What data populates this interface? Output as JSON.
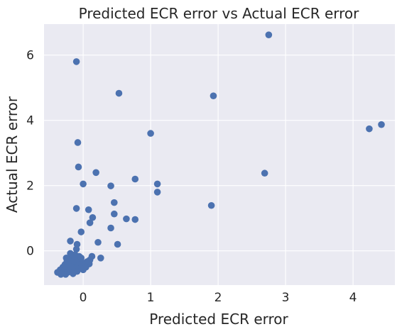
{
  "chart_data": {
    "type": "scatter",
    "title": "Predicted ECR error vs Actual ECR error",
    "xlabel": "Predicted ECR error",
    "ylabel": "Actual ECR error",
    "xlim": [
      -0.58,
      4.62
    ],
    "ylim": [
      -1.05,
      6.95
    ],
    "xticks": [
      0,
      1,
      2,
      3,
      4
    ],
    "yticks": [
      0,
      2,
      4,
      6
    ],
    "xtick_labels": [
      "0",
      "1",
      "2",
      "3",
      "4"
    ],
    "ytick_labels": [
      "0",
      "2",
      "4",
      "6"
    ],
    "grid": true,
    "background_color": "#eaeaf2",
    "grid_color": "#ffffff",
    "point_color": "#4c72b0",
    "points": [
      {
        "x": -0.1,
        "y": 5.8
      },
      {
        "x": 2.75,
        "y": 6.62
      },
      {
        "x": 0.53,
        "y": 4.83
      },
      {
        "x": 1.93,
        "y": 4.75
      },
      {
        "x": 4.42,
        "y": 3.87
      },
      {
        "x": 4.24,
        "y": 3.74
      },
      {
        "x": 1.0,
        "y": 3.6
      },
      {
        "x": -0.08,
        "y": 3.32
      },
      {
        "x": -0.07,
        "y": 2.57
      },
      {
        "x": 0.19,
        "y": 2.4
      },
      {
        "x": 2.69,
        "y": 2.38
      },
      {
        "x": 0.77,
        "y": 2.2
      },
      {
        "x": 1.1,
        "y": 2.05
      },
      {
        "x": 0.0,
        "y": 2.05
      },
      {
        "x": 0.41,
        "y": 1.99
      },
      {
        "x": 1.1,
        "y": 1.8
      },
      {
        "x": 0.46,
        "y": 1.48
      },
      {
        "x": 1.9,
        "y": 1.39
      },
      {
        "x": -0.1,
        "y": 1.3
      },
      {
        "x": 0.08,
        "y": 1.26
      },
      {
        "x": 0.46,
        "y": 1.13
      },
      {
        "x": 0.14,
        "y": 1.02
      },
      {
        "x": 0.64,
        "y": 0.98
      },
      {
        "x": 0.77,
        "y": 0.96
      },
      {
        "x": 0.1,
        "y": 0.86
      },
      {
        "x": 0.41,
        "y": 0.7
      },
      {
        "x": -0.03,
        "y": 0.58
      },
      {
        "x": -0.19,
        "y": 0.3
      },
      {
        "x": 0.22,
        "y": 0.26
      },
      {
        "x": 0.51,
        "y": 0.2
      },
      {
        "x": -0.09,
        "y": 0.2
      },
      {
        "x": -0.1,
        "y": 0.05
      },
      {
        "x": -0.19,
        "y": -0.08
      },
      {
        "x": -0.12,
        "y": -0.12
      },
      {
        "x": -0.06,
        "y": -0.17
      },
      {
        "x": 0.13,
        "y": -0.17
      },
      {
        "x": -0.25,
        "y": -0.22
      },
      {
        "x": -0.16,
        "y": -0.22
      },
      {
        "x": -0.03,
        "y": -0.22
      },
      {
        "x": 0.26,
        "y": -0.22
      },
      {
        "x": -0.22,
        "y": -0.28
      },
      {
        "x": -0.13,
        "y": -0.28
      },
      {
        "x": -0.05,
        "y": -0.3
      },
      {
        "x": 0.1,
        "y": -0.28
      },
      {
        "x": -0.24,
        "y": -0.32
      },
      {
        "x": -0.18,
        "y": -0.35
      },
      {
        "x": -0.1,
        "y": -0.34
      },
      {
        "x": -0.01,
        "y": -0.36
      },
      {
        "x": 0.06,
        "y": -0.33
      },
      {
        "x": -0.27,
        "y": -0.42
      },
      {
        "x": -0.2,
        "y": -0.42
      },
      {
        "x": -0.13,
        "y": -0.44
      },
      {
        "x": -0.06,
        "y": -0.42
      },
      {
        "x": 0.03,
        "y": -0.44
      },
      {
        "x": 0.09,
        "y": -0.4
      },
      {
        "x": -0.3,
        "y": -0.5
      },
      {
        "x": -0.24,
        "y": -0.52
      },
      {
        "x": -0.17,
        "y": -0.5
      },
      {
        "x": -0.1,
        "y": -0.53
      },
      {
        "x": -0.03,
        "y": -0.52
      },
      {
        "x": 0.04,
        "y": -0.5
      },
      {
        "x": -0.34,
        "y": -0.58
      },
      {
        "x": -0.27,
        "y": -0.6
      },
      {
        "x": -0.2,
        "y": -0.58
      },
      {
        "x": -0.13,
        "y": -0.6
      },
      {
        "x": -0.07,
        "y": -0.56
      },
      {
        "x": 0.0,
        "y": -0.58
      },
      {
        "x": -0.38,
        "y": -0.66
      },
      {
        "x": -0.3,
        "y": -0.68
      },
      {
        "x": -0.23,
        "y": -0.66
      },
      {
        "x": -0.16,
        "y": -0.66
      },
      {
        "x": -0.09,
        "y": -0.63
      },
      {
        "x": -0.33,
        "y": -0.72
      },
      {
        "x": -0.26,
        "y": -0.72
      },
      {
        "x": -0.15,
        "y": -0.7
      }
    ]
  }
}
